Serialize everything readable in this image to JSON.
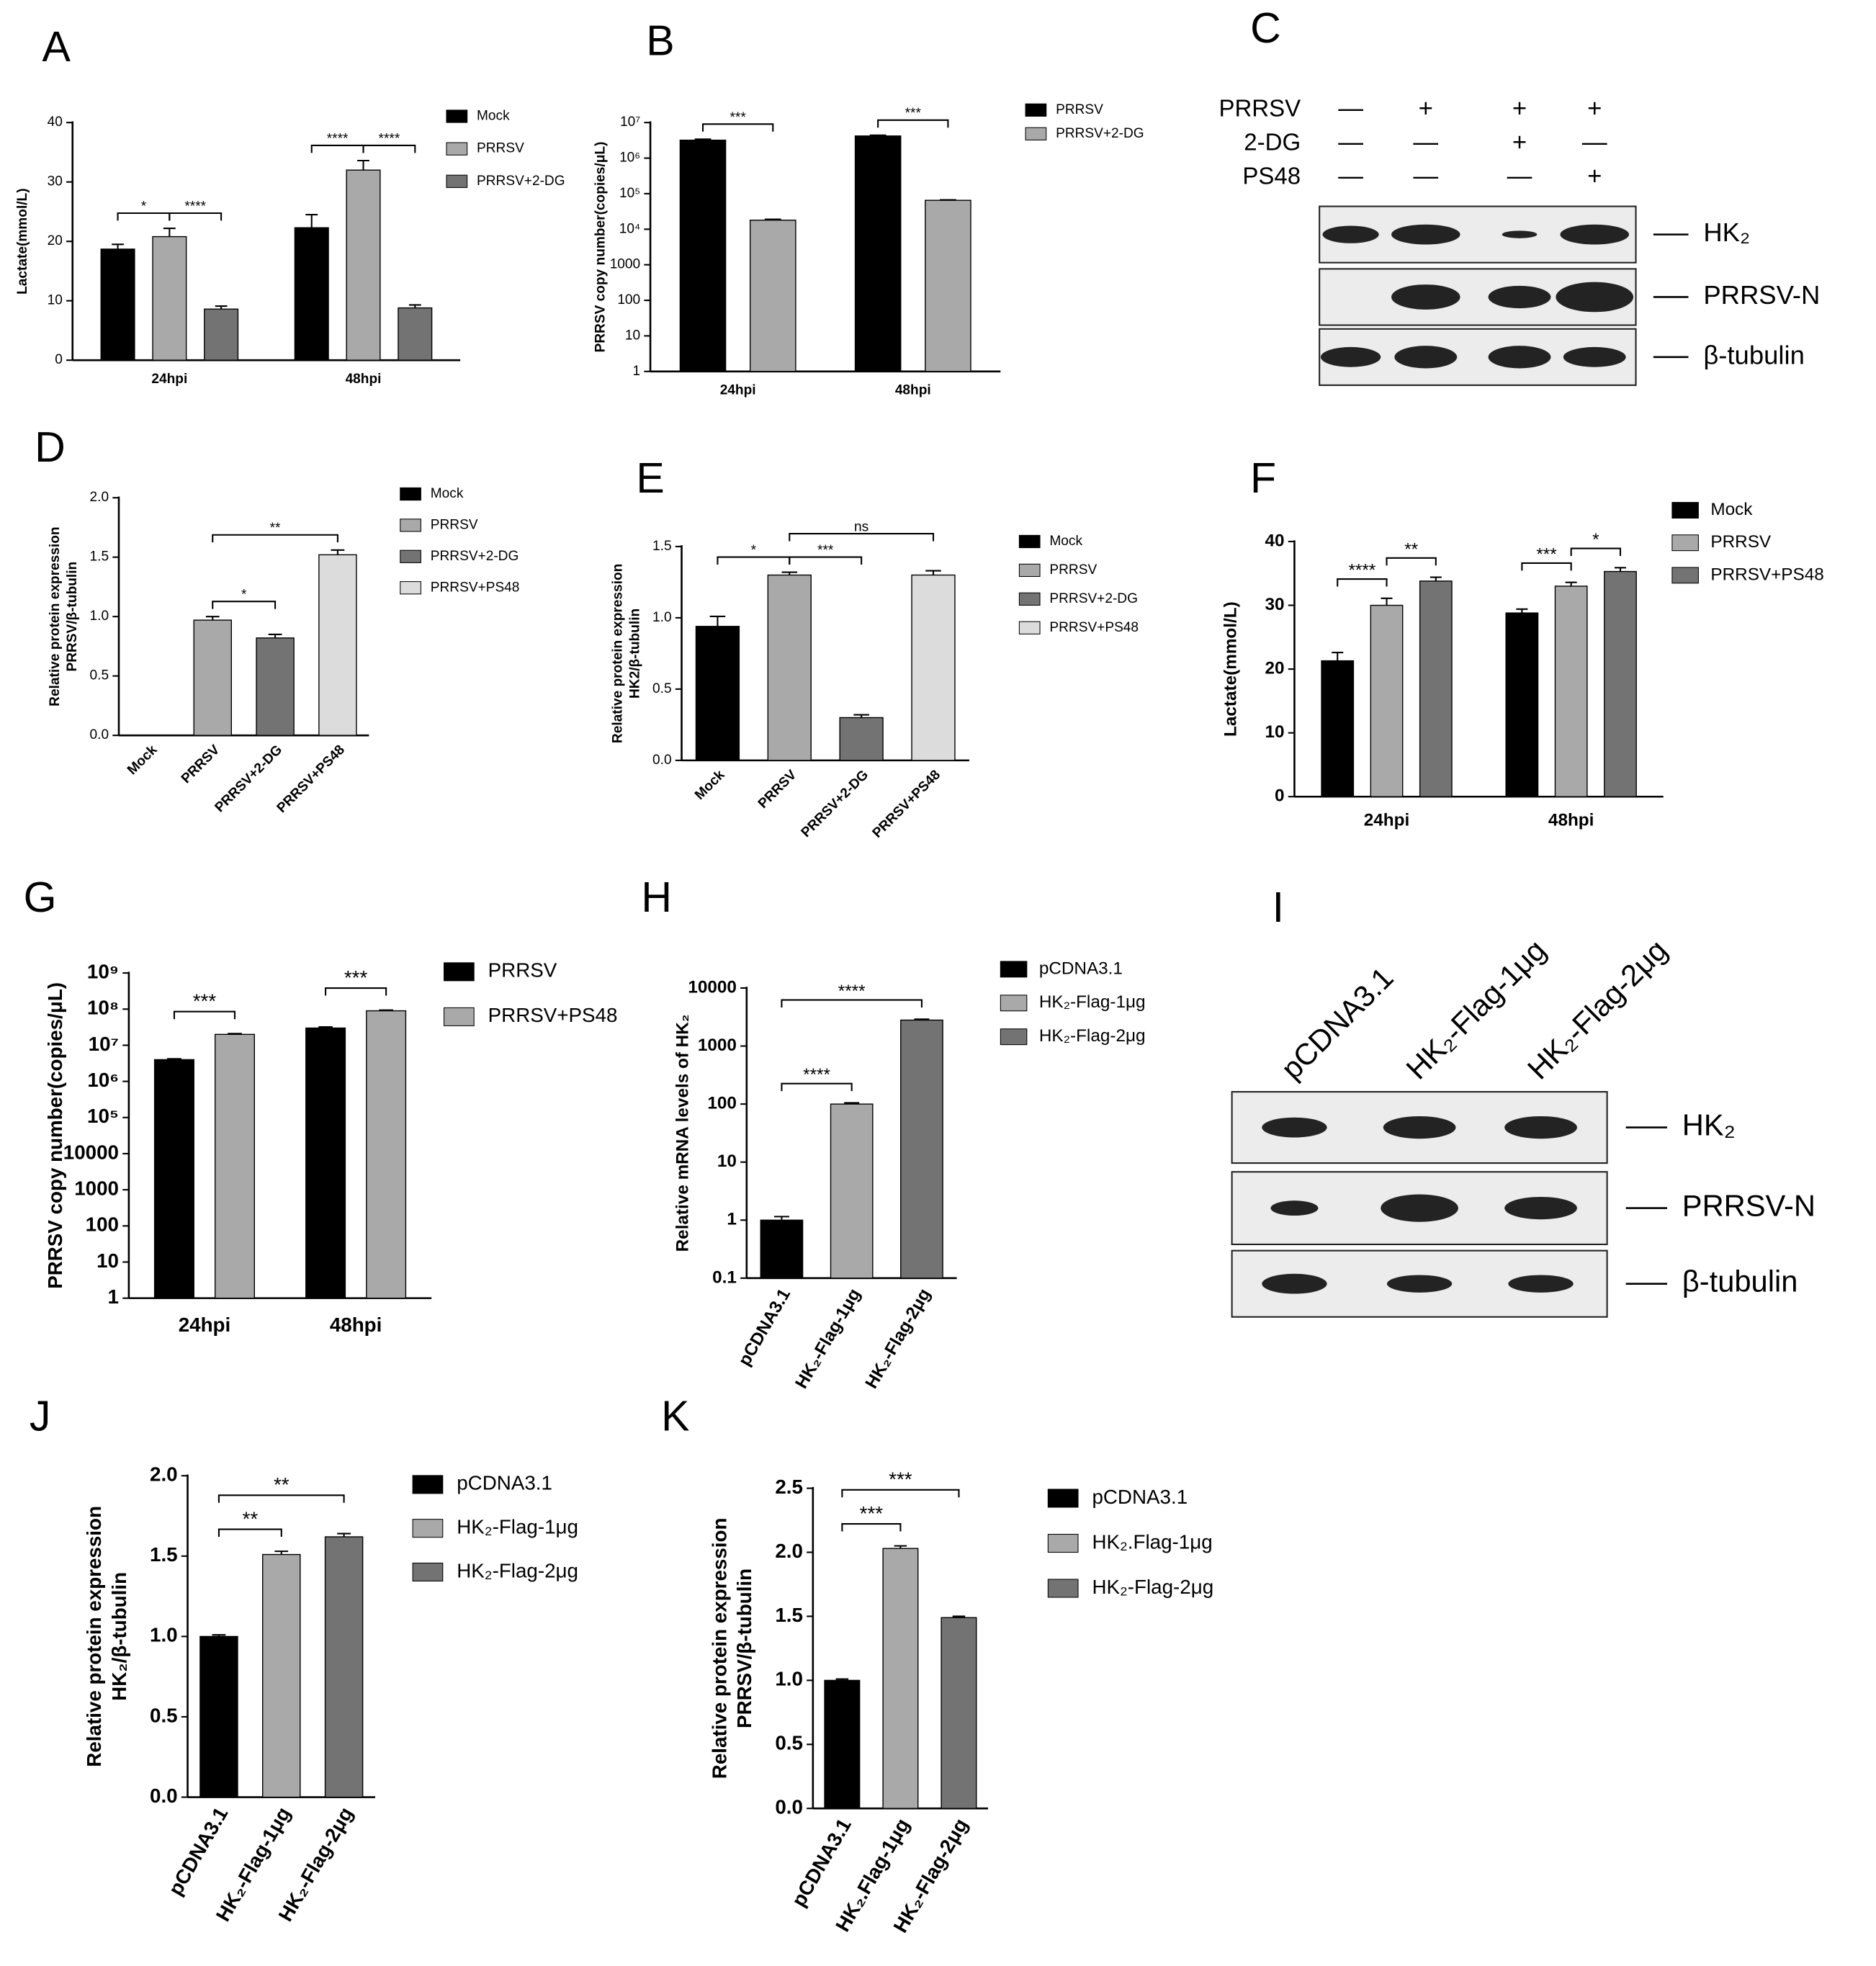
{
  "chart_data": [
    {
      "type": "bar",
      "panel": "A",
      "y_label": "Lactate(mmol/L)",
      "categories": [
        "24hpi",
        "48hpi"
      ],
      "series": [
        {
          "name": "Mock",
          "color": "#000000",
          "values": [
            18.7,
            22.3
          ],
          "errors": [
            0.8,
            2.2
          ]
        },
        {
          "name": "PRRSV",
          "color": "#a9a9a9",
          "values": [
            20.8,
            32
          ],
          "errors": [
            1.4,
            1.6
          ]
        },
        {
          "name": "PRRSV+2-DG",
          "color": "#737373",
          "values": [
            8.6,
            8.8
          ],
          "errors": [
            0.5,
            0.5
          ]
        }
      ],
      "ylim": [
        0,
        40
      ],
      "yticks": [
        0,
        10,
        20,
        30,
        40
      ],
      "annotations": [
        {
          "text": "*",
          "category": 0,
          "bars": [
            0,
            1
          ]
        },
        {
          "text": "****",
          "category": 0,
          "bars": [
            1,
            2
          ]
        },
        {
          "text": "****",
          "category": 1,
          "bars": [
            0,
            1
          ]
        },
        {
          "text": "****",
          "category": 1,
          "bars": [
            1,
            2
          ]
        }
      ]
    },
    {
      "type": "bar",
      "panel": "B",
      "y_label": "PRRSV copy number(copies/μL)",
      "categories": [
        "24hpi",
        "48hpi"
      ],
      "log": true,
      "series": [
        {
          "name": "PRRSV",
          "color": "#000000",
          "values": [
            3200000,
            4200000
          ],
          "errors": [
            200000,
            200000
          ]
        },
        {
          "name": "PRRSV+2-DG",
          "color": "#a9a9a9",
          "values": [
            18000,
            65000
          ],
          "errors": [
            1000,
            2000
          ]
        }
      ],
      "ylim": [
        1,
        10000000
      ],
      "yticks": [
        1,
        10,
        100,
        1000,
        {
          "value": 10000,
          "label": "10⁴"
        },
        {
          "value": 100000,
          "label": "10⁵"
        },
        {
          "value": 1000000,
          "label": "10⁶"
        },
        {
          "value": 10000000,
          "label": "10⁷"
        }
      ],
      "annotations": [
        {
          "text": "***",
          "category": 0,
          "bars": [
            0,
            1
          ]
        },
        {
          "text": "***",
          "category": 1,
          "bars": [
            0,
            1
          ]
        }
      ]
    },
    {
      "type": "bar",
      "panel": "D",
      "y_label": [
        "Relative protein expression",
        "PRRSV/β-tubulin"
      ],
      "categories": [
        "Mock",
        "PRRSV",
        "PRRSV+2-DG",
        "PRRSV+PS48"
      ],
      "values": [
        0,
        0.97,
        0.82,
        1.52
      ],
      "errors": [
        0,
        0.03,
        0.03,
        0.04
      ],
      "colors": [
        "#000000",
        "#a9a9a9",
        "#737373",
        "#dcdcdc"
      ],
      "ylim": [
        0,
        2
      ],
      "yticks": [
        {
          "value": 0,
          "label": "0.0"
        },
        0.5,
        {
          "value": 1,
          "label": "1.0"
        },
        1.5,
        {
          "value": 2,
          "label": "2.0"
        }
      ],
      "annotations": [
        {
          "text": "*",
          "bars": [
            1,
            2
          ]
        },
        {
          "text": "**",
          "bars": [
            1,
            3
          ]
        }
      ]
    },
    {
      "type": "bar",
      "panel": "E",
      "y_label": [
        "Relative protein expression",
        "HK2/β-tubulin"
      ],
      "categories": [
        "Mock",
        "PRRSV",
        "PRRSV+2-DG",
        "PRRSV+PS48"
      ],
      "values": [
        0.94,
        1.3,
        0.3,
        1.3
      ],
      "errors": [
        0.07,
        0.02,
        0.02,
        0.03
      ],
      "colors": [
        "#000000",
        "#a9a9a9",
        "#737373",
        "#dcdcdc"
      ],
      "ylim": [
        0,
        1.5
      ],
      "yticks": [
        {
          "value": 0,
          "label": "0.0"
        },
        0.5,
        {
          "value": 1,
          "label": "1.0"
        },
        1.5
      ],
      "annotations": [
        {
          "text": "*",
          "bars": [
            0,
            1
          ]
        },
        {
          "text": "***",
          "bars": [
            1,
            2
          ]
        },
        {
          "text": "ns",
          "bars": [
            1,
            3
          ]
        }
      ]
    },
    {
      "type": "bar",
      "panel": "F",
      "y_label": "Lactate(mmol/L)",
      "categories": [
        "24hpi",
        "48hpi"
      ],
      "series": [
        {
          "name": "Mock",
          "color": "#000000",
          "values": [
            21.3,
            28.8
          ],
          "errors": [
            1.3,
            0.6
          ]
        },
        {
          "name": "PRRSV",
          "color": "#a9a9a9",
          "values": [
            30,
            33
          ],
          "errors": [
            1.1,
            0.6
          ]
        },
        {
          "name": "PRRSV+PS48",
          "color": "#737373",
          "values": [
            33.8,
            35.3
          ],
          "errors": [
            0.6,
            0.6
          ]
        }
      ],
      "ylim": [
        0,
        40
      ],
      "yticks": [
        0,
        10,
        20,
        30,
        40
      ],
      "annotations": [
        {
          "text": "****",
          "category": 0,
          "bars": [
            0,
            1
          ]
        },
        {
          "text": "**",
          "category": 0,
          "bars": [
            1,
            2
          ]
        },
        {
          "text": "***",
          "category": 1,
          "bars": [
            0,
            1
          ]
        },
        {
          "text": "*",
          "category": 1,
          "bars": [
            1,
            2
          ]
        }
      ]
    },
    {
      "type": "bar",
      "panel": "G",
      "y_label": "PRRSV copy number(copies/μL)",
      "categories": [
        "24hpi",
        "48hpi"
      ],
      "log": true,
      "series": [
        {
          "name": "PRRSV",
          "color": "#000000",
          "values": [
            4000000,
            30000000
          ],
          "errors": [
            200000,
            2000000
          ]
        },
        {
          "name": "PRRSV+PS48",
          "color": "#a9a9a9",
          "values": [
            20000000,
            90000000
          ],
          "errors": [
            1000000,
            4000000
          ]
        }
      ],
      "ylim": [
        1,
        1000000000
      ],
      "yticks": [
        1,
        10,
        100,
        1000,
        10000,
        {
          "value": 100000,
          "label": "10⁵"
        },
        {
          "value": 1000000,
          "label": "10⁶"
        },
        {
          "value": 10000000,
          "label": "10⁷"
        },
        {
          "value": 100000000,
          "label": "10⁸"
        },
        {
          "value": 1000000000,
          "label": "10⁹"
        }
      ],
      "annotations": [
        {
          "text": "***",
          "category": 0,
          "bars": [
            0,
            1
          ]
        },
        {
          "text": "***",
          "category": 1,
          "bars": [
            0,
            1
          ]
        }
      ]
    },
    {
      "type": "bar",
      "panel": "H",
      "y_label": "Relative mRNA levels of HK₂",
      "log": true,
      "categories": [
        "pCDNA3.1",
        "HK₂-Flag-1μg",
        "HK₂-Flag-2μg"
      ],
      "values": [
        1,
        100,
        2800
      ],
      "errors": [
        0.15,
        5,
        100
      ],
      "colors": [
        "#000000",
        "#a9a9a9",
        "#737373"
      ],
      "ylim": [
        0.1,
        10000
      ],
      "yticks": [
        0.1,
        1,
        10,
        100,
        1000,
        10000
      ],
      "annotations": [
        {
          "text": "****",
          "bars": [
            0,
            1
          ]
        },
        {
          "text": "****",
          "bars": [
            0,
            2
          ]
        }
      ]
    },
    {
      "type": "bar",
      "panel": "J",
      "y_label": [
        "Relative protein expression",
        "HK₂/β-tubulin"
      ],
      "categories": [
        "pCDNA3.1",
        "HK₂-Flag-1μg",
        "HK₂-Flag-2μg"
      ],
      "values": [
        1,
        1.51,
        1.62
      ],
      "errors": [
        0.01,
        0.02,
        0.02
      ],
      "colors": [
        "#000000",
        "#a9a9a9",
        "#737373"
      ],
      "ylim": [
        0,
        2
      ],
      "yticks": [
        {
          "value": 0,
          "label": "0.0"
        },
        0.5,
        {
          "value": 1,
          "label": "1.0"
        },
        1.5,
        {
          "value": 2,
          "label": "2.0"
        }
      ],
      "annotations": [
        {
          "text": "**",
          "bars": [
            0,
            1
          ]
        },
        {
          "text": "**",
          "bars": [
            0,
            2
          ]
        }
      ]
    },
    {
      "type": "bar",
      "panel": "K",
      "y_label": [
        "Relative protein expression",
        "PRRSV/β-tubulin"
      ],
      "categories": [
        "pCDNA3.1",
        "HK₂.Flag-1μg",
        "HK₂-Flag-2μg"
      ],
      "values": [
        1,
        2.03,
        1.49
      ],
      "errors": [
        0.01,
        0.02,
        0.01
      ],
      "colors": [
        "#000000",
        "#a9a9a9",
        "#737373"
      ],
      "ylim": [
        0,
        2.5
      ],
      "yticks": [
        {
          "value": 0,
          "label": "0.0"
        },
        0.5,
        {
          "value": 1,
          "label": "1.0"
        },
        1.5,
        {
          "value": 2,
          "label": "2.0"
        },
        2.5
      ],
      "annotations": [
        {
          "text": "***",
          "bars": [
            0,
            1
          ]
        },
        {
          "text": "***",
          "bars": [
            0,
            2
          ]
        }
      ]
    }
  ],
  "blots": [
    {
      "panel": "C",
      "conditions": [
        {
          "name": "PRRSV",
          "signs": [
            "—",
            "+",
            "+",
            "+"
          ]
        },
        {
          "name": "2-DG",
          "signs": [
            "—",
            "—",
            "+",
            "—"
          ]
        },
        {
          "name": "PS48",
          "signs": [
            "—",
            "—",
            "—",
            "+"
          ]
        }
      ],
      "bands": [
        "HK₂",
        "PRRSV-N",
        "β-tubulin"
      ]
    },
    {
      "panel": "I",
      "lanes": [
        "pCDNA3.1",
        "HK₂-Flag-1μg",
        "HK₂-Flag-2μg"
      ],
      "bands": [
        "HK₂",
        "PRRSV-N",
        "β-tubulin"
      ]
    }
  ]
}
